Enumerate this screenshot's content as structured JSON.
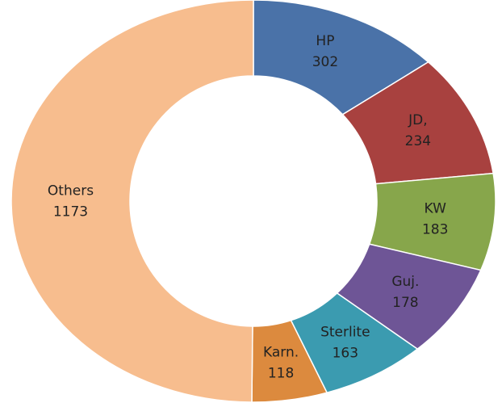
{
  "chart_data": {
    "type": "donut",
    "categories": [
      "HP",
      "JD,",
      "KW",
      "Guj.",
      "Sterlite",
      "Karn.",
      "Others"
    ],
    "values": [
      302,
      234,
      183,
      178,
      163,
      118,
      1173
    ],
    "colors": [
      "#4a72a8",
      "#a8413f",
      "#87a64b",
      "#6e5596",
      "#3b9bb0",
      "#dc8a3e",
      "#f7bd8e"
    ]
  }
}
